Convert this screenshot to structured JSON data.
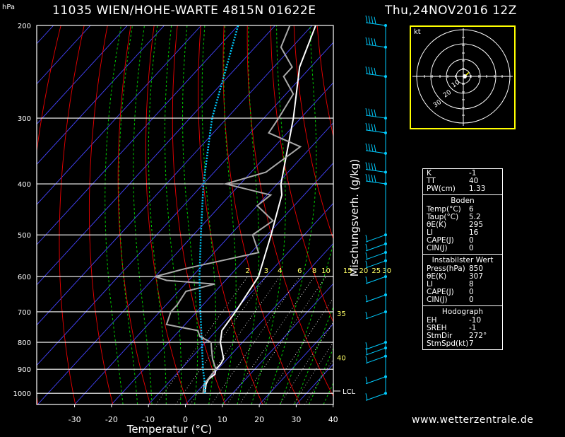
{
  "header": {
    "station": "11035 WIEN/HOHE-WARTE 4815N 01622E",
    "datetime": "Thu,24NOV2016 12Z",
    "unit_hpa": "hPa"
  },
  "chart_data": {
    "type": "line",
    "subtype": "skew-T log-p diagram",
    "xlabel": "Temperatur (°C)",
    "ylabel": "Mischungsverh. (g/kg)",
    "x_ticks": [
      -30,
      -20,
      -10,
      0,
      10,
      20,
      30,
      40
    ],
    "p_ticks": [
      200,
      300,
      400,
      500,
      600,
      700,
      800,
      900,
      1000
    ],
    "p_range": [
      200,
      1050
    ],
    "mixing_ratio_labels": [
      "2",
      "3",
      "4",
      "6",
      "8",
      "10",
      "15",
      "20",
      "25",
      "30"
    ],
    "side_labels": [
      {
        "text": "35",
        "p": 705
      },
      {
        "text": "40",
        "p": 855
      },
      {
        "text": "LCL",
        "p": 990
      }
    ],
    "series": [
      {
        "name": "temperature",
        "color": "#ffffff",
        "points": [
          [
            1000,
            2.5
          ],
          [
            960,
            0.5
          ],
          [
            940,
            0
          ],
          [
            920,
            0.5
          ],
          [
            900,
            -0.5
          ],
          [
            880,
            -0.5
          ],
          [
            860,
            -1
          ],
          [
            800,
            -6
          ],
          [
            760,
            -8.5
          ],
          [
            700,
            -9.5
          ],
          [
            600,
            -12
          ],
          [
            500,
            -19
          ],
          [
            420,
            -26
          ],
          [
            400,
            -29
          ],
          [
            300,
            -42
          ],
          [
            240,
            -53
          ],
          [
            200,
            -59
          ]
        ]
      },
      {
        "name": "dewpoint",
        "color": "#aaaaaa",
        "points": [
          [
            1000,
            2
          ],
          [
            960,
            0
          ],
          [
            900,
            -0.5
          ],
          [
            860,
            -4
          ],
          [
            820,
            -7
          ],
          [
            800,
            -8.5
          ],
          [
            780,
            -13
          ],
          [
            760,
            -15
          ],
          [
            740,
            -25
          ],
          [
            700,
            -27
          ],
          [
            680,
            -27
          ],
          [
            640,
            -28
          ],
          [
            620,
            -22
          ],
          [
            610,
            -36
          ],
          [
            600,
            -40
          ],
          [
            580,
            -34
          ],
          [
            540,
            -18
          ],
          [
            500,
            -24
          ],
          [
            470,
            -22
          ],
          [
            440,
            -30
          ],
          [
            420,
            -29
          ],
          [
            400,
            -44
          ],
          [
            380,
            -36
          ],
          [
            340,
            -33
          ],
          [
            320,
            -45
          ],
          [
            300,
            -46
          ],
          [
            270,
            -48
          ],
          [
            250,
            -55
          ],
          [
            240,
            -55
          ],
          [
            220,
            -63
          ],
          [
            200,
            -66
          ]
        ]
      },
      {
        "name": "parcel",
        "color": "#00ccff",
        "points": [
          [
            1000,
            2.5
          ],
          [
            950,
            -0.5
          ],
          [
            900,
            -4
          ],
          [
            800,
            -11
          ],
          [
            700,
            -19
          ],
          [
            600,
            -28
          ],
          [
            500,
            -38
          ],
          [
            400,
            -50
          ],
          [
            300,
            -64
          ],
          [
            200,
            -80
          ]
        ]
      }
    ],
    "hodograph": {
      "label": "kt",
      "ring_labels": [
        "10",
        "20",
        "30"
      ],
      "points": [
        [
          0,
          0
        ],
        [
          2,
          1
        ],
        [
          4,
          2
        ],
        [
          5,
          3
        ],
        [
          6,
          4
        ],
        [
          7,
          5
        ]
      ]
    }
  },
  "stats": {
    "general": [
      {
        "k": "K",
        "v": "-1"
      },
      {
        "k": "TT",
        "v": "40"
      },
      {
        "k": "PW(cm)",
        "v": "1.33"
      }
    ],
    "boden_title": "Boden",
    "boden": [
      {
        "k": "Temp(°C)",
        "v": "6"
      },
      {
        "k": "Taup(°C)",
        "v": "5.2"
      },
      {
        "k": "θE(K)",
        "v": "295"
      },
      {
        "k": "LI",
        "v": "16"
      },
      {
        "k": "CAPE(J)",
        "v": "0"
      },
      {
        "k": "CIN(J)",
        "v": "0"
      }
    ],
    "instab_title": "Instabilster Wert",
    "instab": [
      {
        "k": "Press(hPa)",
        "v": "850"
      },
      {
        "k": "θE(K)",
        "v": "307"
      },
      {
        "k": "LI",
        "v": "8"
      },
      {
        "k": "CAPE(J)",
        "v": "0"
      },
      {
        "k": "CIN(J)",
        "v": "0"
      }
    ],
    "hodo_title": "Hodograph",
    "hodo": [
      {
        "k": "EH",
        "v": "-10"
      },
      {
        "k": "SREH",
        "v": "-1"
      },
      {
        "k": "StmDir",
        "v": "272°"
      },
      {
        "k": "StmSpd(kt)",
        "v": "7"
      }
    ]
  },
  "footer": {
    "url": "www.wetterzentrale.de"
  },
  "colors": {
    "isobar": "#ffffff",
    "isotherm": "#4444ff",
    "dry_adiabat": "#ee0000",
    "moist_adiabat": "#00cc00",
    "mixing_ratio": "#ffffff",
    "temperature": "#ffffff",
    "dewpoint": "#aaaaaa",
    "parcel": "#00ccff",
    "wind": "#00ccff",
    "hodo_frame": "#ffff00"
  }
}
